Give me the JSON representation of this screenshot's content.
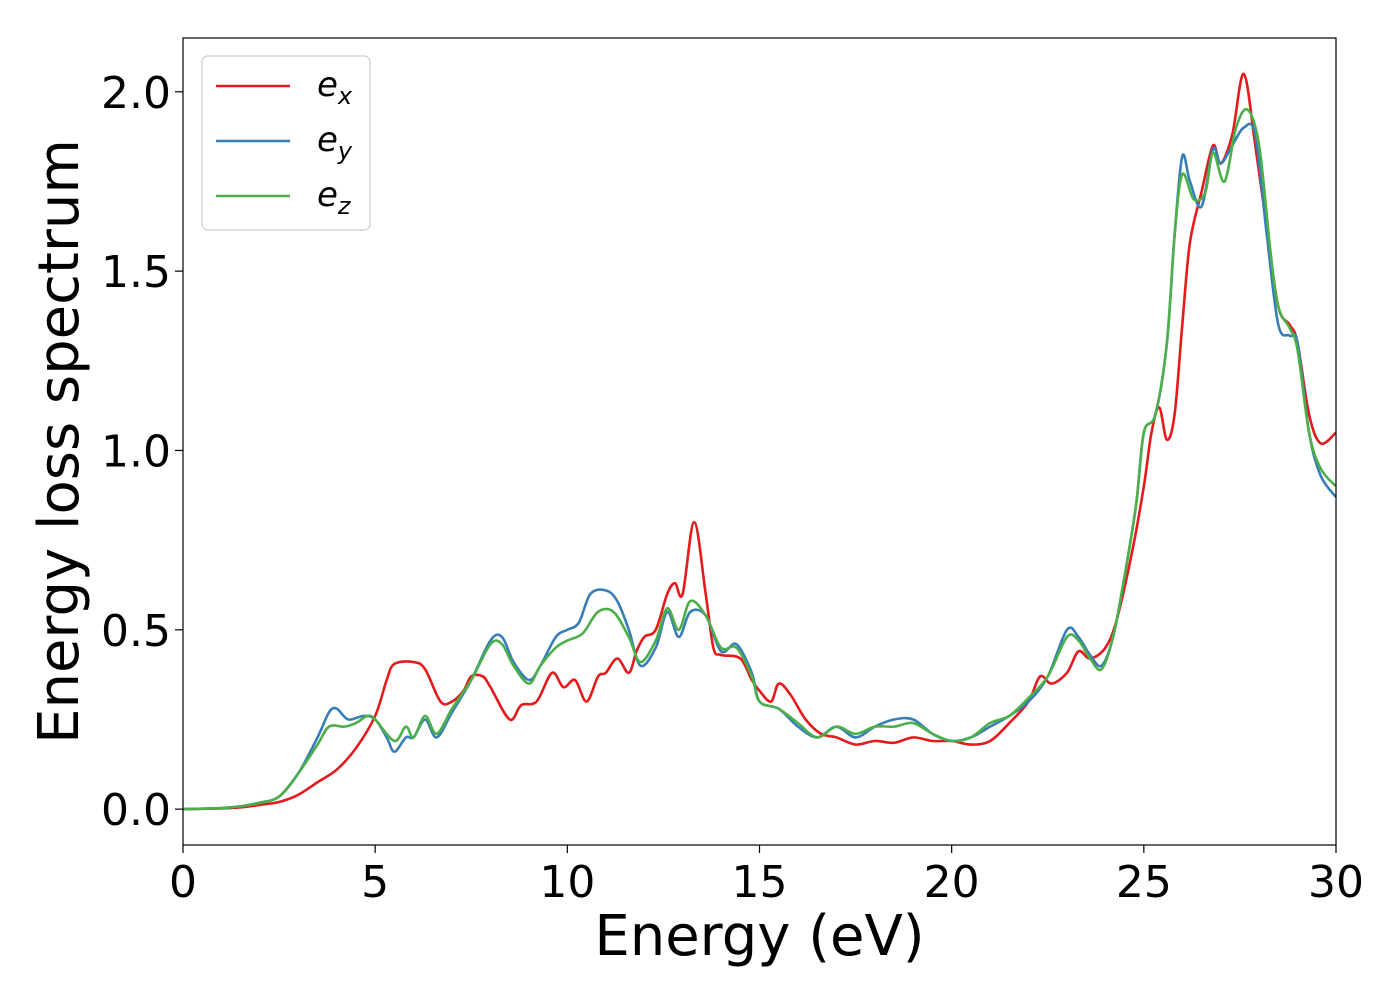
{
  "chart_data": {
    "type": "line",
    "xlabel": "Energy (eV)",
    "ylabel": "Energy loss spectrum",
    "xlim": [
      0,
      30
    ],
    "ylim": [
      -0.1,
      2.15
    ],
    "xticks": [
      0,
      5,
      10,
      15,
      20,
      25,
      30
    ],
    "xtick_labels": [
      "0",
      "5",
      "10",
      "15",
      "20",
      "25",
      "30"
    ],
    "yticks": [
      0.0,
      0.5,
      1.0,
      1.5,
      2.0
    ],
    "ytick_labels": [
      "0.0",
      "0.5",
      "1.0",
      "1.5",
      "2.0"
    ],
    "grid": false,
    "legend_position": "top-left",
    "series": [
      {
        "name": "e_x",
        "label_base": "e",
        "label_sub": "x",
        "color": "#e41a1c",
        "points": [
          [
            0,
            0
          ],
          [
            1,
            0.002
          ],
          [
            1.5,
            0.005
          ],
          [
            2,
            0.012
          ],
          [
            2.5,
            0.02
          ],
          [
            3,
            0.04
          ],
          [
            3.5,
            0.075
          ],
          [
            4,
            0.11
          ],
          [
            4.5,
            0.17
          ],
          [
            5,
            0.26
          ],
          [
            5.3,
            0.36
          ],
          [
            5.5,
            0.405
          ],
          [
            6,
            0.41
          ],
          [
            6.3,
            0.39
          ],
          [
            6.7,
            0.3
          ],
          [
            7,
            0.3
          ],
          [
            7.3,
            0.33
          ],
          [
            7.5,
            0.37
          ],
          [
            7.8,
            0.37
          ],
          [
            8,
            0.34
          ],
          [
            8.5,
            0.25
          ],
          [
            8.8,
            0.29
          ],
          [
            9.2,
            0.3
          ],
          [
            9.6,
            0.38
          ],
          [
            9.9,
            0.34
          ],
          [
            10.2,
            0.36
          ],
          [
            10.5,
            0.3
          ],
          [
            10.8,
            0.37
          ],
          [
            11,
            0.38
          ],
          [
            11.3,
            0.42
          ],
          [
            11.6,
            0.38
          ],
          [
            11.8,
            0.44
          ],
          [
            12,
            0.48
          ],
          [
            12.3,
            0.5
          ],
          [
            12.6,
            0.6
          ],
          [
            12.8,
            0.63
          ],
          [
            13,
            0.6
          ],
          [
            13.3,
            0.8
          ],
          [
            13.6,
            0.6
          ],
          [
            13.8,
            0.45
          ],
          [
            14,
            0.43
          ],
          [
            14.5,
            0.42
          ],
          [
            14.8,
            0.36
          ],
          [
            15,
            0.33
          ],
          [
            15.3,
            0.3
          ],
          [
            15.5,
            0.35
          ],
          [
            15.8,
            0.32
          ],
          [
            16.2,
            0.25
          ],
          [
            16.6,
            0.21
          ],
          [
            17,
            0.2
          ],
          [
            17.5,
            0.18
          ],
          [
            18,
            0.19
          ],
          [
            18.5,
            0.185
          ],
          [
            19,
            0.2
          ],
          [
            19.5,
            0.19
          ],
          [
            20,
            0.19
          ],
          [
            20.5,
            0.18
          ],
          [
            21,
            0.19
          ],
          [
            21.5,
            0.24
          ],
          [
            22,
            0.3
          ],
          [
            22.3,
            0.37
          ],
          [
            22.6,
            0.35
          ],
          [
            23,
            0.38
          ],
          [
            23.3,
            0.44
          ],
          [
            23.6,
            0.42
          ],
          [
            24,
            0.45
          ],
          [
            24.3,
            0.53
          ],
          [
            24.7,
            0.72
          ],
          [
            25,
            0.9
          ],
          [
            25.2,
            1.05
          ],
          [
            25.4,
            1.12
          ],
          [
            25.6,
            1.03
          ],
          [
            25.8,
            1.1
          ],
          [
            26,
            1.35
          ],
          [
            26.2,
            1.58
          ],
          [
            26.5,
            1.72
          ],
          [
            26.8,
            1.85
          ],
          [
            27,
            1.8
          ],
          [
            27.3,
            1.88
          ],
          [
            27.6,
            2.05
          ],
          [
            27.9,
            1.85
          ],
          [
            28.2,
            1.62
          ],
          [
            28.5,
            1.4
          ],
          [
            28.8,
            1.35
          ],
          [
            29,
            1.3
          ],
          [
            29.3,
            1.1
          ],
          [
            29.6,
            1.02
          ],
          [
            30,
            1.05
          ]
        ]
      },
      {
        "name": "e_y",
        "label_base": "e",
        "label_sub": "y",
        "color": "#377eb8",
        "points": [
          [
            0,
            0
          ],
          [
            1,
            0.003
          ],
          [
            1.5,
            0.008
          ],
          [
            2,
            0.018
          ],
          [
            2.5,
            0.035
          ],
          [
            3,
            0.1
          ],
          [
            3.5,
            0.2
          ],
          [
            3.8,
            0.27
          ],
          [
            4,
            0.28
          ],
          [
            4.3,
            0.25
          ],
          [
            4.7,
            0.26
          ],
          [
            5,
            0.25
          ],
          [
            5.3,
            0.2
          ],
          [
            5.5,
            0.16
          ],
          [
            5.8,
            0.2
          ],
          [
            6,
            0.2
          ],
          [
            6.3,
            0.25
          ],
          [
            6.6,
            0.2
          ],
          [
            7,
            0.27
          ],
          [
            7.5,
            0.36
          ],
          [
            8,
            0.47
          ],
          [
            8.3,
            0.48
          ],
          [
            8.6,
            0.41
          ],
          [
            9,
            0.36
          ],
          [
            9.3,
            0.4
          ],
          [
            9.7,
            0.48
          ],
          [
            10,
            0.5
          ],
          [
            10.3,
            0.52
          ],
          [
            10.6,
            0.6
          ],
          [
            11,
            0.61
          ],
          [
            11.3,
            0.58
          ],
          [
            11.6,
            0.5
          ],
          [
            11.9,
            0.4
          ],
          [
            12.3,
            0.45
          ],
          [
            12.6,
            0.55
          ],
          [
            12.9,
            0.48
          ],
          [
            13.2,
            0.55
          ],
          [
            13.6,
            0.54
          ],
          [
            14,
            0.44
          ],
          [
            14.4,
            0.46
          ],
          [
            14.8,
            0.38
          ],
          [
            15,
            0.3
          ],
          [
            15.5,
            0.28
          ],
          [
            16,
            0.23
          ],
          [
            16.5,
            0.2
          ],
          [
            17,
            0.23
          ],
          [
            17.5,
            0.2
          ],
          [
            18,
            0.23
          ],
          [
            18.5,
            0.25
          ],
          [
            19,
            0.25
          ],
          [
            19.5,
            0.21
          ],
          [
            20,
            0.19
          ],
          [
            20.5,
            0.2
          ],
          [
            21,
            0.23
          ],
          [
            21.5,
            0.26
          ],
          [
            22,
            0.3
          ],
          [
            22.5,
            0.37
          ],
          [
            23,
            0.5
          ],
          [
            23.3,
            0.48
          ],
          [
            23.6,
            0.43
          ],
          [
            23.9,
            0.4
          ],
          [
            24.2,
            0.48
          ],
          [
            24.5,
            0.65
          ],
          [
            24.8,
            0.85
          ],
          [
            25,
            1.05
          ],
          [
            25.3,
            1.1
          ],
          [
            25.6,
            1.3
          ],
          [
            25.8,
            1.6
          ],
          [
            26,
            1.82
          ],
          [
            26.2,
            1.75
          ],
          [
            26.5,
            1.68
          ],
          [
            26.8,
            1.84
          ],
          [
            27,
            1.8
          ],
          [
            27.3,
            1.85
          ],
          [
            27.6,
            1.9
          ],
          [
            27.9,
            1.88
          ],
          [
            28.2,
            1.6
          ],
          [
            28.5,
            1.35
          ],
          [
            28.8,
            1.32
          ],
          [
            29,
            1.3
          ],
          [
            29.3,
            1.05
          ],
          [
            29.6,
            0.93
          ],
          [
            30,
            0.87
          ]
        ]
      },
      {
        "name": "e_z",
        "label_base": "e",
        "label_sub": "z",
        "color": "#4daf4a",
        "points": [
          [
            0,
            0
          ],
          [
            1,
            0.003
          ],
          [
            1.5,
            0.008
          ],
          [
            2,
            0.018
          ],
          [
            2.5,
            0.035
          ],
          [
            3,
            0.1
          ],
          [
            3.5,
            0.18
          ],
          [
            3.8,
            0.23
          ],
          [
            4.2,
            0.23
          ],
          [
            4.5,
            0.24
          ],
          [
            4.8,
            0.26
          ],
          [
            5,
            0.25
          ],
          [
            5.5,
            0.19
          ],
          [
            5.8,
            0.23
          ],
          [
            6,
            0.2
          ],
          [
            6.3,
            0.26
          ],
          [
            6.6,
            0.21
          ],
          [
            7,
            0.28
          ],
          [
            7.5,
            0.36
          ],
          [
            8,
            0.46
          ],
          [
            8.3,
            0.46
          ],
          [
            8.6,
            0.4
          ],
          [
            9,
            0.35
          ],
          [
            9.3,
            0.4
          ],
          [
            9.7,
            0.45
          ],
          [
            10,
            0.47
          ],
          [
            10.4,
            0.49
          ],
          [
            10.8,
            0.55
          ],
          [
            11.2,
            0.55
          ],
          [
            11.6,
            0.48
          ],
          [
            11.9,
            0.41
          ],
          [
            12.3,
            0.47
          ],
          [
            12.6,
            0.56
          ],
          [
            12.9,
            0.5
          ],
          [
            13.2,
            0.58
          ],
          [
            13.6,
            0.54
          ],
          [
            14,
            0.45
          ],
          [
            14.4,
            0.45
          ],
          [
            14.8,
            0.37
          ],
          [
            15,
            0.3
          ],
          [
            15.5,
            0.28
          ],
          [
            16,
            0.24
          ],
          [
            16.5,
            0.2
          ],
          [
            17,
            0.23
          ],
          [
            17.5,
            0.21
          ],
          [
            18,
            0.23
          ],
          [
            18.5,
            0.23
          ],
          [
            19,
            0.24
          ],
          [
            19.5,
            0.21
          ],
          [
            20,
            0.19
          ],
          [
            20.5,
            0.2
          ],
          [
            21,
            0.24
          ],
          [
            21.5,
            0.26
          ],
          [
            22,
            0.31
          ],
          [
            22.5,
            0.37
          ],
          [
            23,
            0.48
          ],
          [
            23.3,
            0.47
          ],
          [
            23.6,
            0.42
          ],
          [
            23.9,
            0.39
          ],
          [
            24.2,
            0.48
          ],
          [
            24.5,
            0.65
          ],
          [
            24.8,
            0.85
          ],
          [
            25,
            1.05
          ],
          [
            25.3,
            1.1
          ],
          [
            25.6,
            1.3
          ],
          [
            25.8,
            1.6
          ],
          [
            26,
            1.77
          ],
          [
            26.3,
            1.7
          ],
          [
            26.6,
            1.72
          ],
          [
            26.8,
            1.83
          ],
          [
            27.1,
            1.75
          ],
          [
            27.4,
            1.9
          ],
          [
            27.7,
            1.95
          ],
          [
            28,
            1.85
          ],
          [
            28.3,
            1.55
          ],
          [
            28.5,
            1.4
          ],
          [
            28.8,
            1.34
          ],
          [
            29,
            1.28
          ],
          [
            29.3,
            1.05
          ],
          [
            29.6,
            0.95
          ],
          [
            30,
            0.9
          ]
        ]
      }
    ]
  }
}
